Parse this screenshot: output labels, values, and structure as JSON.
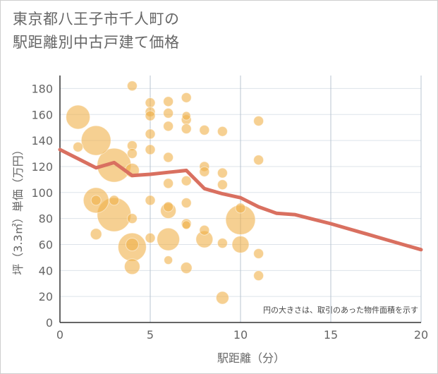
{
  "title_line1": "東京都八王子市千人町の",
  "title_line2": "駅距離別中古戸建て価格",
  "chart_data": {
    "type": "scatter",
    "xlabel": "駅距離（分）",
    "ylabel": "坪（3.3㎡）単価（万円）",
    "xlim": [
      0,
      20
    ],
    "ylim": [
      0,
      190
    ],
    "xticks": [
      0,
      5,
      10,
      15,
      20
    ],
    "yticks": [
      0,
      20,
      40,
      60,
      80,
      100,
      120,
      140,
      160,
      180
    ],
    "note": "円の大きさは、取引のあった物件面積を示す",
    "colors": {
      "bubble": "#f0b149",
      "line": "#d97060",
      "grid": "#b8c4d0"
    },
    "points": [
      {
        "x": 1,
        "y": 158,
        "r": 17
      },
      {
        "x": 1,
        "y": 135,
        "r": 7
      },
      {
        "x": 2,
        "y": 140,
        "r": 21
      },
      {
        "x": 2,
        "y": 94,
        "r": 18
      },
      {
        "x": 2,
        "y": 94,
        "r": 7
      },
      {
        "x": 2,
        "y": 68,
        "r": 8
      },
      {
        "x": 3,
        "y": 121,
        "r": 24
      },
      {
        "x": 3,
        "y": 83,
        "r": 24
      },
      {
        "x": 3,
        "y": 94,
        "r": 7
      },
      {
        "x": 4,
        "y": 182,
        "r": 7
      },
      {
        "x": 4,
        "y": 136,
        "r": 7
      },
      {
        "x": 4,
        "y": 130,
        "r": 7
      },
      {
        "x": 4,
        "y": 117,
        "r": 10
      },
      {
        "x": 4,
        "y": 80,
        "r": 7
      },
      {
        "x": 4,
        "y": 58,
        "r": 20
      },
      {
        "x": 4,
        "y": 60,
        "r": 9
      },
      {
        "x": 4,
        "y": 43,
        "r": 11
      },
      {
        "x": 5,
        "y": 169,
        "r": 7
      },
      {
        "x": 5,
        "y": 162,
        "r": 7
      },
      {
        "x": 5,
        "y": 159,
        "r": 7
      },
      {
        "x": 5,
        "y": 145,
        "r": 7
      },
      {
        "x": 5,
        "y": 133,
        "r": 7
      },
      {
        "x": 5,
        "y": 94,
        "r": 7
      },
      {
        "x": 5,
        "y": 65,
        "r": 7
      },
      {
        "x": 6,
        "y": 170,
        "r": 7
      },
      {
        "x": 6,
        "y": 161,
        "r": 7
      },
      {
        "x": 6,
        "y": 151,
        "r": 7
      },
      {
        "x": 6,
        "y": 127,
        "r": 7
      },
      {
        "x": 6,
        "y": 107,
        "r": 7
      },
      {
        "x": 6,
        "y": 89,
        "r": 7
      },
      {
        "x": 6,
        "y": 86,
        "r": 11
      },
      {
        "x": 6,
        "y": 64,
        "r": 16
      },
      {
        "x": 6,
        "y": 48,
        "r": 6
      },
      {
        "x": 7,
        "y": 173,
        "r": 7
      },
      {
        "x": 7,
        "y": 159,
        "r": 6
      },
      {
        "x": 7,
        "y": 156,
        "r": 7
      },
      {
        "x": 7,
        "y": 149,
        "r": 7
      },
      {
        "x": 7,
        "y": 109,
        "r": 7
      },
      {
        "x": 7,
        "y": 92,
        "r": 7
      },
      {
        "x": 7,
        "y": 76,
        "r": 7
      },
      {
        "x": 7,
        "y": 75,
        "r": 6
      },
      {
        "x": 7,
        "y": 42,
        "r": 8
      },
      {
        "x": 8,
        "y": 148,
        "r": 7
      },
      {
        "x": 8,
        "y": 120,
        "r": 7
      },
      {
        "x": 8,
        "y": 116,
        "r": 7
      },
      {
        "x": 8,
        "y": 71,
        "r": 7
      },
      {
        "x": 8,
        "y": 64,
        "r": 12
      },
      {
        "x": 9,
        "y": 147,
        "r": 7
      },
      {
        "x": 9,
        "y": 115,
        "r": 7
      },
      {
        "x": 9,
        "y": 106,
        "r": 7
      },
      {
        "x": 9,
        "y": 61,
        "r": 7
      },
      {
        "x": 9,
        "y": 19,
        "r": 9
      },
      {
        "x": 10,
        "y": 88,
        "r": 7
      },
      {
        "x": 10,
        "y": 79,
        "r": 21
      },
      {
        "x": 10,
        "y": 60,
        "r": 12
      },
      {
        "x": 11,
        "y": 155,
        "r": 7
      },
      {
        "x": 11,
        "y": 125,
        "r": 7
      },
      {
        "x": 11,
        "y": 53,
        "r": 7
      },
      {
        "x": 11,
        "y": 36,
        "r": 7
      }
    ],
    "line": [
      {
        "x": 0,
        "y": 133
      },
      {
        "x": 1,
        "y": 126
      },
      {
        "x": 2,
        "y": 119
      },
      {
        "x": 3,
        "y": 123
      },
      {
        "x": 4,
        "y": 113
      },
      {
        "x": 5,
        "y": 114
      },
      {
        "x": 6,
        "y": 115.5
      },
      {
        "x": 7,
        "y": 117
      },
      {
        "x": 8,
        "y": 103
      },
      {
        "x": 9,
        "y": 99
      },
      {
        "x": 10,
        "y": 96
      },
      {
        "x": 11,
        "y": 89
      },
      {
        "x": 12,
        "y": 84
      },
      {
        "x": 13,
        "y": 83
      },
      {
        "x": 14,
        "y": 79.5
      },
      {
        "x": 15,
        "y": 76
      },
      {
        "x": 16,
        "y": 72
      },
      {
        "x": 17,
        "y": 68
      },
      {
        "x": 18,
        "y": 64
      },
      {
        "x": 19,
        "y": 60
      },
      {
        "x": 20,
        "y": 56
      }
    ]
  }
}
